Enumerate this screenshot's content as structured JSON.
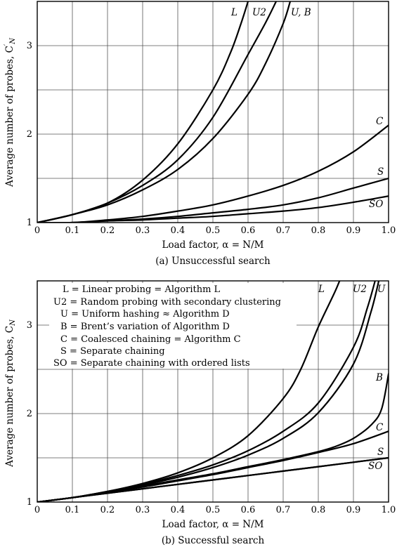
{
  "chart_data": [
    {
      "type": "line",
      "caption": "(a) Unsuccessful search",
      "xlabel": "Load factor, α = N/M",
      "ylabel": "Average number of probes, C′N",
      "xlim": [
        0,
        1.0
      ],
      "ylim": [
        1,
        3.5
      ],
      "xticks": [
        "0",
        "0.1",
        "0.2",
        "0.3",
        "0.4",
        "0.5",
        "0.6",
        "0.7",
        "0.8",
        "0.9",
        "1.0"
      ],
      "yticks": [
        "1",
        "2",
        "3"
      ],
      "grid": true,
      "series": [
        {
          "name": "L",
          "x": [
            0,
            0.1,
            0.2,
            0.3,
            0.4,
            0.5,
            0.55,
            0.58,
            0.6
          ],
          "y": [
            1,
            1.09,
            1.22,
            1.48,
            1.89,
            2.5,
            2.92,
            3.25,
            3.5
          ]
        },
        {
          "name": "U2",
          "x": [
            0,
            0.1,
            0.2,
            0.3,
            0.4,
            0.5,
            0.6,
            0.65,
            0.68
          ],
          "y": [
            1,
            1.09,
            1.22,
            1.42,
            1.71,
            2.19,
            2.9,
            3.26,
            3.5
          ]
        },
        {
          "name": "U, B",
          "x": [
            0,
            0.1,
            0.2,
            0.3,
            0.4,
            0.5,
            0.6,
            0.65,
            0.7,
            0.72
          ],
          "y": [
            1,
            1.09,
            1.2,
            1.37,
            1.6,
            1.95,
            2.45,
            2.8,
            3.25,
            3.5
          ]
        },
        {
          "name": "C",
          "x": [
            0,
            0.1,
            0.2,
            0.3,
            0.4,
            0.5,
            0.6,
            0.7,
            0.8,
            0.9,
            1.0
          ],
          "y": [
            1,
            1.0,
            1.03,
            1.07,
            1.13,
            1.2,
            1.3,
            1.42,
            1.58,
            1.8,
            2.1
          ]
        },
        {
          "name": "S",
          "x": [
            0,
            0.1,
            0.2,
            0.3,
            0.4,
            0.5,
            0.6,
            0.7,
            0.8,
            0.9,
            1.0
          ],
          "y": [
            1,
            1.0,
            1.02,
            1.04,
            1.07,
            1.11,
            1.15,
            1.2,
            1.28,
            1.39,
            1.5
          ]
        },
        {
          "name": "SO",
          "x": [
            0,
            0.1,
            0.2,
            0.3,
            0.4,
            0.5,
            0.6,
            0.7,
            0.8,
            0.9,
            1.0
          ],
          "y": [
            1,
            1.0,
            1.02,
            1.03,
            1.05,
            1.07,
            1.1,
            1.13,
            1.17,
            1.23,
            1.3
          ]
        }
      ]
    },
    {
      "type": "line",
      "caption": "(b) Successful search",
      "xlabel": "Load factor, α = N/M",
      "ylabel": "Average number of probes, CN",
      "xlim": [
        0,
        1.0
      ],
      "ylim": [
        1,
        3.5
      ],
      "xticks": [
        "0",
        "0.1",
        "0.2",
        "0.3",
        "0.4",
        "0.5",
        "0.6",
        "0.7",
        "0.8",
        "0.9",
        "1.0"
      ],
      "yticks": [
        "1",
        "2",
        "3"
      ],
      "grid": true,
      "legend": [
        "L = Linear probing = Algorithm L",
        "U2 = Random probing with secondary clustering",
        "U = Uniform hashing ≈ Algorithm D",
        "B = Brent’s variation of Algorithm D",
        "C = Coalesced chaining = Algorithm C",
        "S = Separate chaining",
        "SO = Separate chaining with ordered lists"
      ],
      "series": [
        {
          "name": "L",
          "x": [
            0,
            0.1,
            0.2,
            0.3,
            0.4,
            0.5,
            0.6,
            0.7,
            0.75,
            0.8,
            0.85,
            0.88
          ],
          "y": [
            1,
            1.05,
            1.12,
            1.21,
            1.33,
            1.5,
            1.75,
            2.17,
            2.5,
            2.98,
            3.4,
            3.7
          ]
        },
        {
          "name": "U2",
          "x": [
            0,
            0.1,
            0.2,
            0.3,
            0.4,
            0.5,
            0.6,
            0.7,
            0.8,
            0.9,
            0.94,
            0.965
          ],
          "y": [
            1,
            1.05,
            1.12,
            1.2,
            1.3,
            1.42,
            1.58,
            1.8,
            2.12,
            2.75,
            3.2,
            3.55
          ]
        },
        {
          "name": "U",
          "x": [
            0,
            0.1,
            0.2,
            0.3,
            0.4,
            0.5,
            0.6,
            0.7,
            0.8,
            0.9,
            0.95,
            0.975
          ],
          "y": [
            1,
            1.05,
            1.11,
            1.19,
            1.28,
            1.39,
            1.53,
            1.72,
            2.01,
            2.56,
            3.15,
            3.55
          ]
        },
        {
          "name": "B",
          "x": [
            0,
            0.1,
            0.2,
            0.3,
            0.4,
            0.5,
            0.6,
            0.7,
            0.8,
            0.85,
            0.9,
            0.95,
            0.98,
            1.0
          ],
          "y": [
            1,
            1.05,
            1.11,
            1.18,
            1.25,
            1.32,
            1.4,
            1.48,
            1.57,
            1.63,
            1.72,
            1.87,
            2.05,
            2.45
          ]
        },
        {
          "name": "C",
          "x": [
            0,
            0.1,
            0.2,
            0.3,
            0.4,
            0.5,
            0.6,
            0.7,
            0.8,
            0.9,
            1.0
          ],
          "y": [
            1,
            1.05,
            1.11,
            1.17,
            1.24,
            1.31,
            1.39,
            1.47,
            1.56,
            1.66,
            1.8
          ]
        },
        {
          "name": "S",
          "x": [
            0,
            0.1,
            0.2,
            0.3,
            0.4,
            0.5,
            0.6,
            0.7,
            0.8,
            0.9,
            1.0
          ],
          "y": [
            1,
            1.05,
            1.1,
            1.15,
            1.2,
            1.25,
            1.3,
            1.35,
            1.4,
            1.45,
            1.5
          ]
        },
        {
          "name": "SO",
          "x": [
            0,
            0.1,
            0.2,
            0.3,
            0.4,
            0.5,
            0.6,
            0.7,
            0.8,
            0.9,
            1.0
          ],
          "y": [
            1,
            1.05,
            1.1,
            1.15,
            1.2,
            1.25,
            1.3,
            1.35,
            1.4,
            1.45,
            1.5
          ]
        }
      ]
    }
  ],
  "labels_a": {
    "L": "L",
    "U2": "U2",
    "UB": "U, B",
    "C": "C",
    "S": "S",
    "SO": "SO",
    "ylabel_text": "Average number of probes, C",
    "ylabel_sup": "′",
    "ylabel_sub": "N"
  },
  "labels_b": {
    "L": "L",
    "U2": "U2",
    "U": "U",
    "B": "B",
    "C": "C",
    "S": "S",
    "SO": "SO",
    "ylabel_text": "Average number of probes, C",
    "ylabel_sub": "N"
  }
}
